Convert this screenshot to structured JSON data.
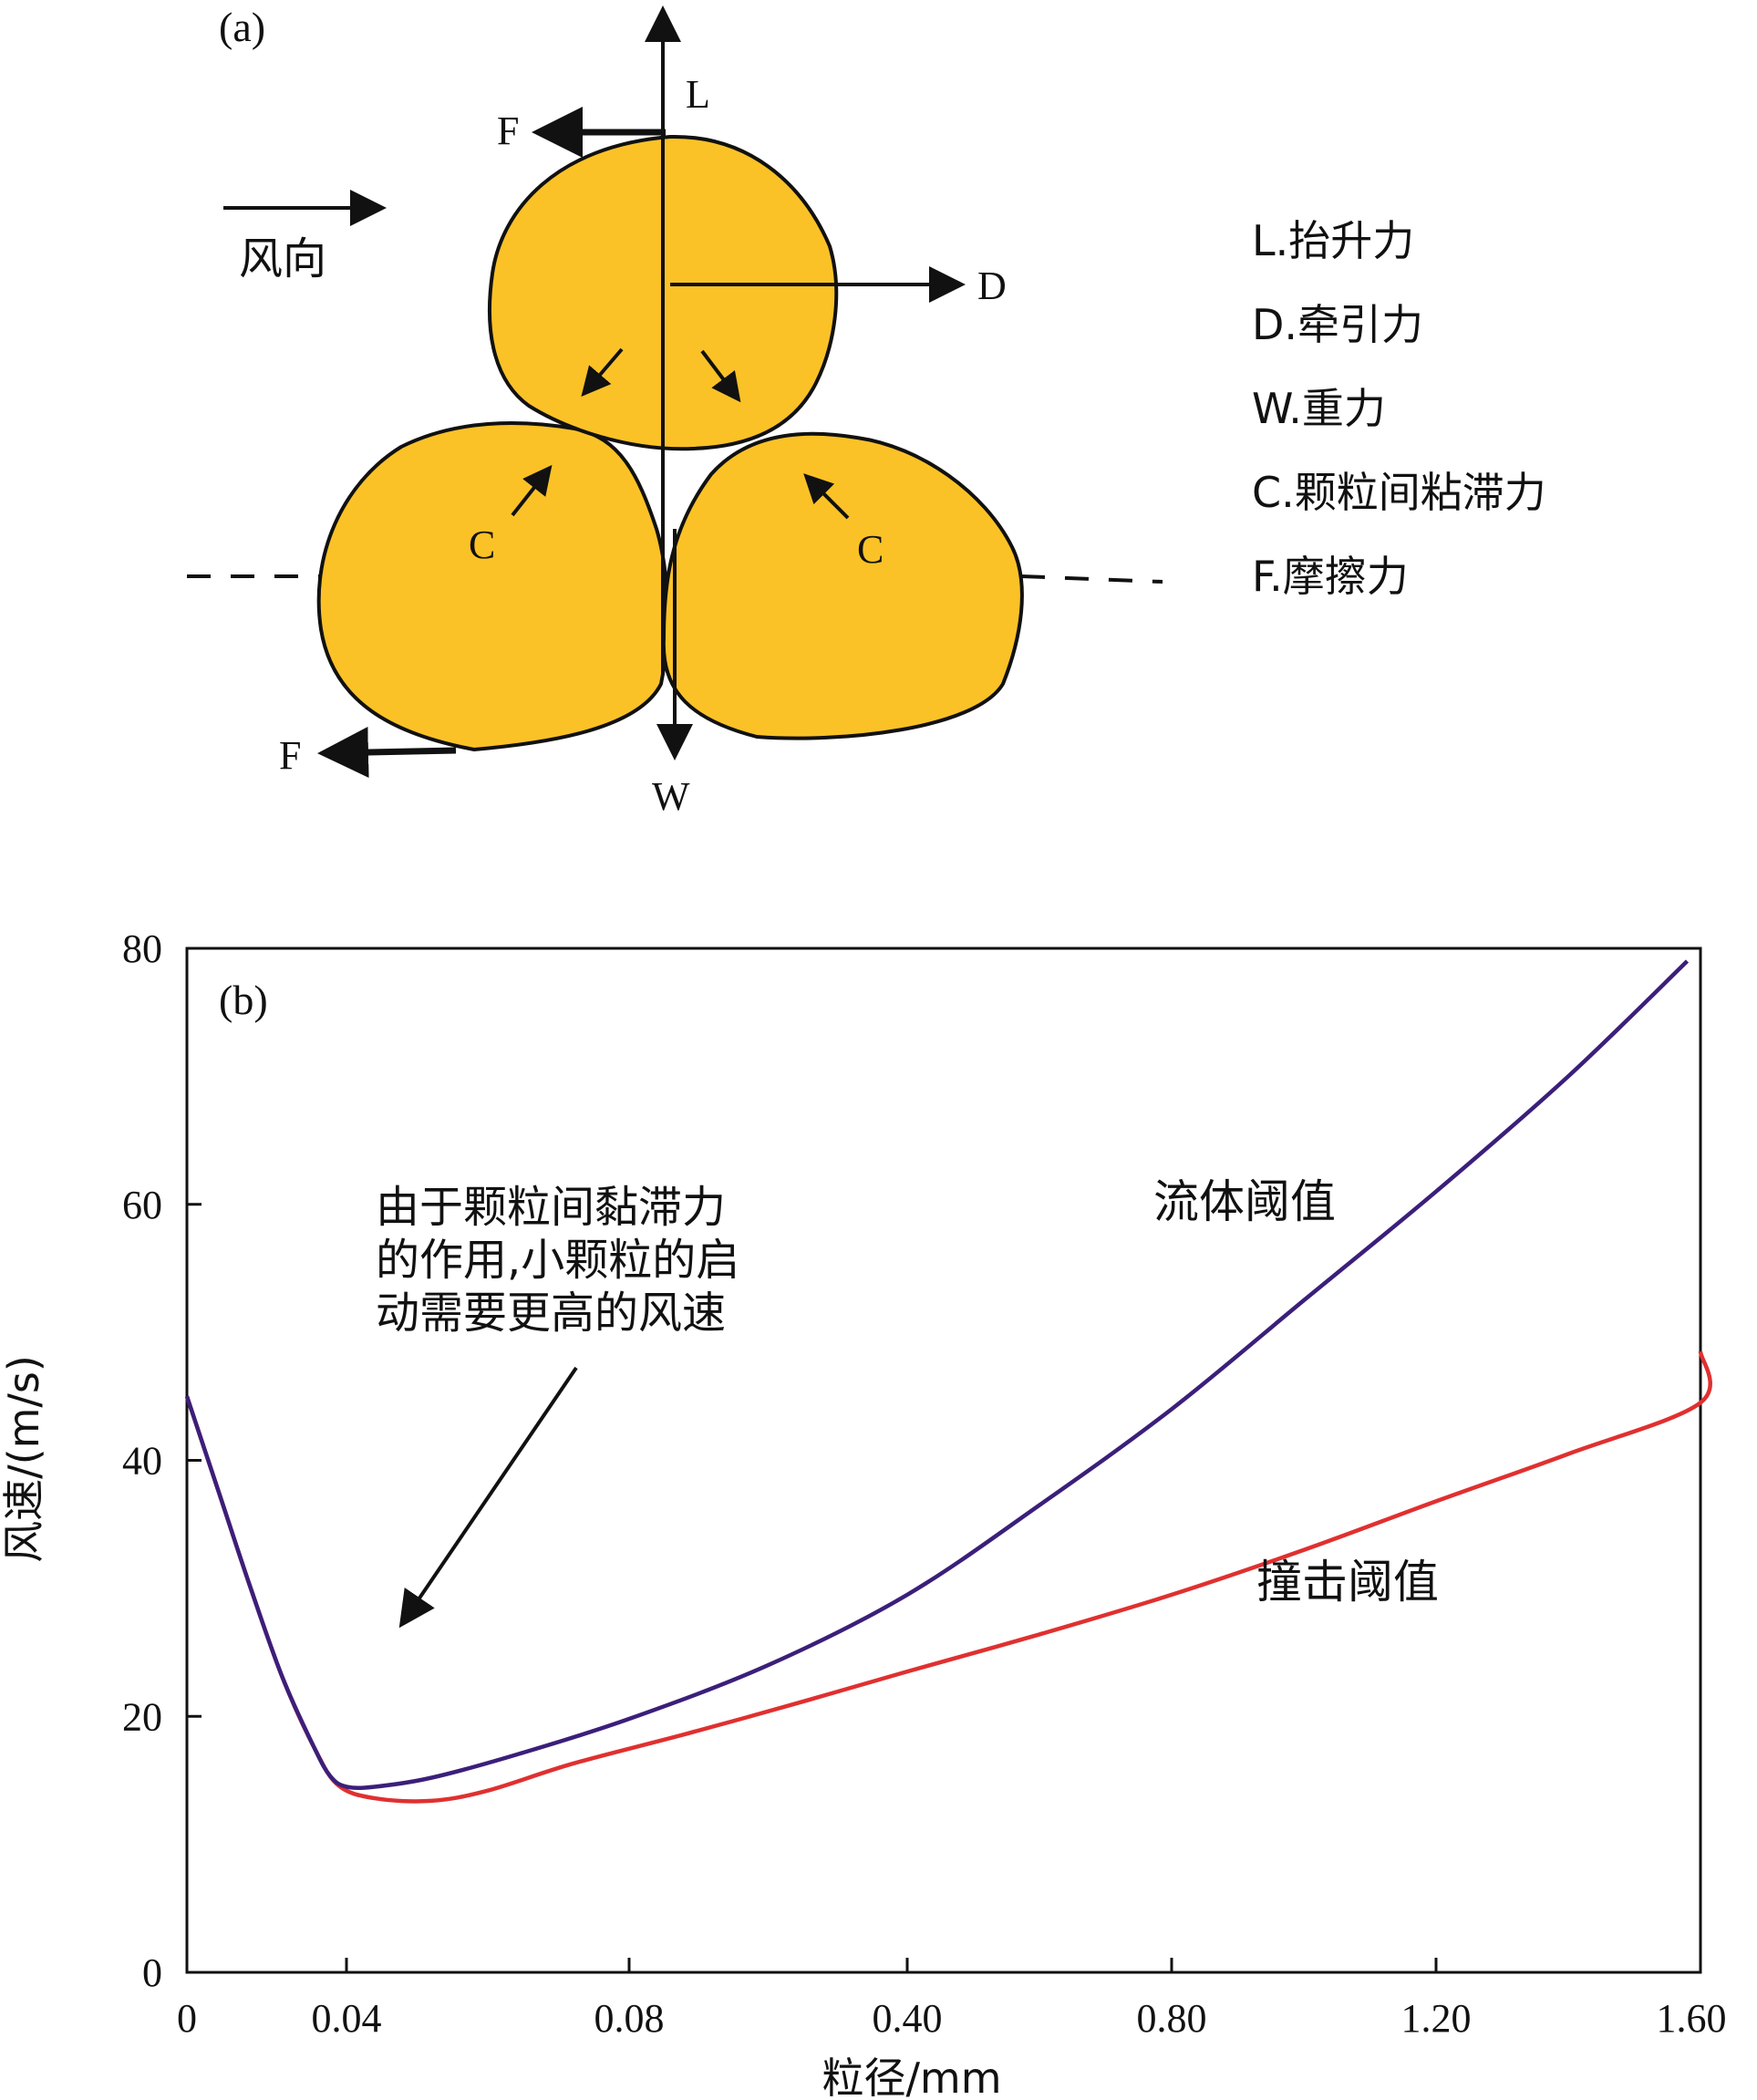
{
  "panel_a": {
    "label": "(a)",
    "wind_label": "风向",
    "force_labels": {
      "L": "L",
      "D": "D",
      "W": "W",
      "C_left": "C",
      "C_right": "C",
      "F_top": "F",
      "F_bottom": "F"
    },
    "legend": [
      "L.抬升力",
      "D.牵引力",
      "W.重力",
      "C.颗粒间粘滞力",
      "F.摩擦力"
    ],
    "colors": {
      "grain": "#FBC227",
      "outline": "#111111"
    }
  },
  "chart_data": {
    "type": "line",
    "panel_label": "(b)",
    "xlabel": "粒径/mm",
    "ylabel": "风速/(m/s)",
    "categories": [
      "0",
      "0.04",
      "0.08",
      "0.40",
      "0.80",
      "1.20",
      "1.60"
    ],
    "ylim": [
      0,
      80
    ],
    "yticks": [
      "0",
      "20",
      "40",
      "60",
      "80"
    ],
    "grid": false,
    "annotation": {
      "lines": [
        "由于颗粒间黏滞力",
        "的作用,小颗粒的启",
        "动需要更高的风速"
      ]
    },
    "series": [
      {
        "name": "流体阈值",
        "color": "#3B1F7A",
        "points": [
          [
            0,
            45
          ],
          [
            0.2,
            37.5
          ],
          [
            0.4,
            30
          ],
          [
            0.6,
            23
          ],
          [
            0.8,
            17.5
          ],
          [
            0.9,
            15.3
          ],
          [
            1.0,
            14.5
          ],
          [
            1.1,
            14.5
          ],
          [
            1.3,
            15.2
          ],
          [
            1.6,
            17
          ],
          [
            2.0,
            19.8
          ],
          [
            2.5,
            24
          ],
          [
            3.0,
            29.5
          ],
          [
            3.5,
            36.5
          ],
          [
            4.0,
            44
          ],
          [
            4.5,
            52.5
          ],
          [
            5.0,
            61
          ],
          [
            5.5,
            70
          ],
          [
            5.95,
            79
          ]
        ]
      },
      {
        "name": "撞击阈值",
        "color": "#E03030",
        "points": [
          [
            0,
            45
          ],
          [
            0.2,
            37.5
          ],
          [
            0.4,
            30
          ],
          [
            0.6,
            23
          ],
          [
            0.8,
            17.5
          ],
          [
            0.95,
            14.6
          ],
          [
            1.1,
            13.6
          ],
          [
            1.3,
            13.4
          ],
          [
            1.5,
            14.2
          ],
          [
            1.8,
            16.3
          ],
          [
            2.2,
            18.6
          ],
          [
            2.6,
            21
          ],
          [
            3.0,
            23.5
          ],
          [
            3.5,
            26.4
          ],
          [
            4.0,
            29.5
          ],
          [
            4.5,
            33
          ],
          [
            5.0,
            36.8
          ],
          [
            5.5,
            40.5
          ],
          [
            6.0,
            44.5
          ],
          [
            6.7,
            48.5
          ]
        ]
      }
    ]
  }
}
